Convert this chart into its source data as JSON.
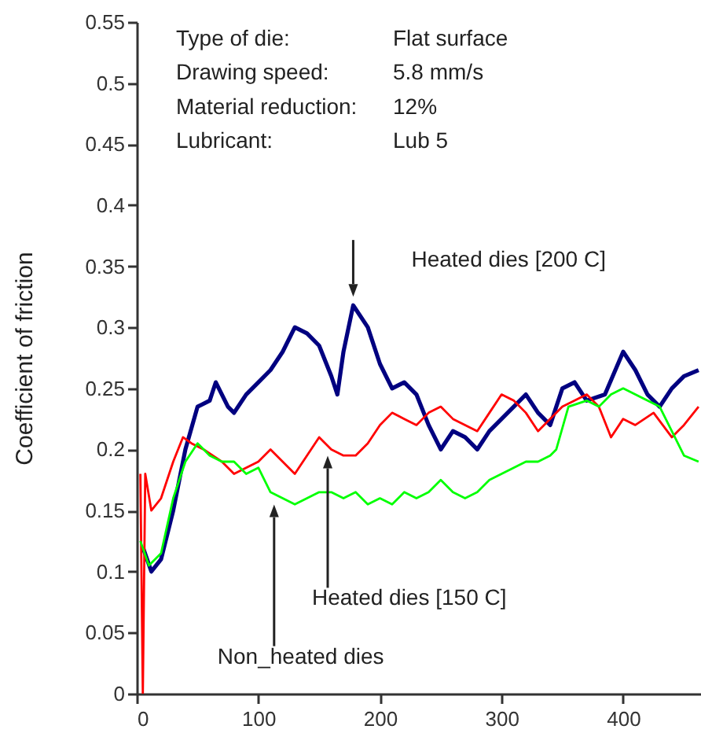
{
  "chart_data": {
    "type": "line",
    "ylabel": "Coefficient of friction",
    "xlim": [
      0,
      464
    ],
    "xticks": [
      0,
      100,
      200,
      300,
      400
    ],
    "ylim": [
      0,
      0.55
    ],
    "yticks": [
      0,
      0.05,
      0.1,
      0.15,
      0.2,
      0.25,
      0.3,
      0.35,
      0.4,
      0.45,
      0.5,
      0.55
    ],
    "line_style": "solid",
    "series": [
      {
        "color": "#000080",
        "x": [
          5,
          12,
          20,
          30,
          40,
          50,
          60,
          65,
          75,
          80,
          90,
          100,
          110,
          120,
          130,
          140,
          150,
          160,
          165,
          170,
          178,
          190,
          200,
          210,
          220,
          230,
          240,
          250,
          260,
          270,
          280,
          290,
          300,
          310,
          320,
          330,
          340,
          350,
          360,
          370,
          385,
          400,
          410,
          420,
          430,
          440,
          450,
          462
        ],
        "values": [
          0.12,
          0.1,
          0.11,
          0.15,
          0.2,
          0.235,
          0.24,
          0.255,
          0.235,
          0.23,
          0.245,
          0.255,
          0.265,
          0.28,
          0.3,
          0.295,
          0.285,
          0.26,
          0.245,
          0.28,
          0.318,
          0.3,
          0.27,
          0.25,
          0.255,
          0.245,
          0.22,
          0.2,
          0.215,
          0.21,
          0.2,
          0.215,
          0.225,
          0.235,
          0.245,
          0.23,
          0.22,
          0.25,
          0.255,
          0.24,
          0.245,
          0.28,
          0.265,
          0.245,
          0.235,
          0.25,
          0.26,
          0.265
        ]
      },
      {
        "color": "#ff0000",
        "x": [
          3,
          5,
          7,
          12,
          20,
          30,
          38,
          45,
          55,
          70,
          80,
          90,
          100,
          110,
          120,
          130,
          140,
          150,
          160,
          170,
          180,
          190,
          200,
          210,
          220,
          230,
          240,
          250,
          260,
          270,
          280,
          290,
          300,
          310,
          320,
          330,
          350,
          370,
          380,
          390,
          400,
          410,
          425,
          440,
          450,
          462
        ],
        "values": [
          0.18,
          0,
          0.18,
          0.15,
          0.16,
          0.19,
          0.21,
          0.205,
          0.2,
          0.19,
          0.18,
          0.185,
          0.19,
          0.2,
          0.19,
          0.18,
          0.195,
          0.21,
          0.2,
          0.195,
          0.195,
          0.205,
          0.22,
          0.23,
          0.225,
          0.22,
          0.23,
          0.235,
          0.225,
          0.22,
          0.215,
          0.23,
          0.245,
          0.24,
          0.23,
          0.215,
          0.235,
          0.245,
          0.235,
          0.21,
          0.225,
          0.22,
          0.23,
          0.21,
          0.22,
          0.235
        ]
      },
      {
        "color": "#00ff00",
        "x": [
          3,
          10,
          20,
          30,
          40,
          50,
          60,
          70,
          80,
          90,
          100,
          110,
          120,
          130,
          140,
          150,
          160,
          170,
          180,
          190,
          200,
          210,
          220,
          230,
          240,
          250,
          260,
          270,
          280,
          290,
          300,
          310,
          320,
          330,
          340,
          345,
          355,
          370,
          380,
          390,
          400,
          410,
          420,
          430,
          440,
          450,
          462
        ],
        "values": [
          0.125,
          0.105,
          0.115,
          0.16,
          0.19,
          0.205,
          0.195,
          0.19,
          0.19,
          0.18,
          0.185,
          0.165,
          0.16,
          0.155,
          0.16,
          0.165,
          0.165,
          0.16,
          0.165,
          0.155,
          0.16,
          0.155,
          0.165,
          0.16,
          0.165,
          0.175,
          0.165,
          0.16,
          0.165,
          0.175,
          0.18,
          0.185,
          0.19,
          0.19,
          0.195,
          0.2,
          0.235,
          0.24,
          0.235,
          0.245,
          0.25,
          0.245,
          0.24,
          0.235,
          0.215,
          0.195,
          0.19
        ]
      }
    ],
    "annotations": [
      "Type of die: Flat surface",
      "Drawing speed: 5.8 mm/s",
      "Material reduction: 12%",
      "Lubricant: Lub 5",
      {
        "text": "Heated dies [200 C]",
        "x": 178,
        "y": 0.32
      },
      "Heated dies [150 C]",
      "Non_heated dies"
    ]
  }
}
